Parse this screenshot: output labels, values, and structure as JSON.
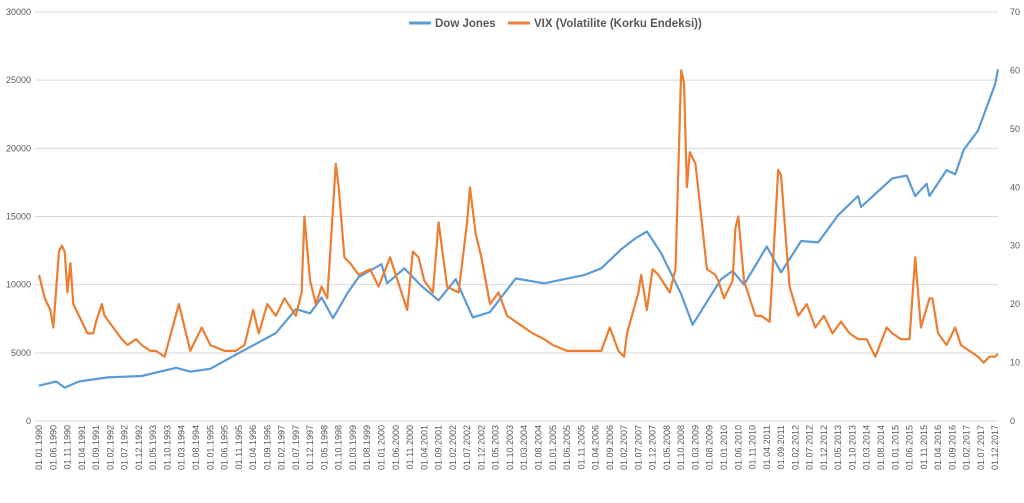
{
  "chart_data": {
    "type": "line",
    "title": "",
    "xlabel": "",
    "ylabel": "",
    "y2label": "",
    "grid": "horizontal",
    "legend_position": "top",
    "ylim": [
      0,
      30000
    ],
    "y_ticks": [
      "0",
      "5000",
      "10000",
      "15000",
      "20000",
      "25000",
      "30000"
    ],
    "y2lim": [
      0,
      70
    ],
    "y2_ticks": [
      "0",
      "10",
      "20",
      "30",
      "40",
      "50",
      "60",
      "70"
    ],
    "x_start": "1990-01",
    "x_ticks": [
      "01.01.1990",
      "01.06.1990",
      "01.11.1990",
      "01.04.1991",
      "01.09.1991",
      "01.02.1992",
      "01.07.1992",
      "01.12.1992",
      "01.05.1993",
      "01.10.1993",
      "01.03.1994",
      "01.08.1994",
      "01.01.1995",
      "01.06.1995",
      "01.11.1995",
      "01.04.1996",
      "01.09.1996",
      "01.02.1997",
      "01.07.1997",
      "01.12.1997",
      "01.05.1998",
      "01.10.1998",
      "01.03.1999",
      "01.08.1999",
      "01.01.2000",
      "01.06.2000",
      "01.11.2000",
      "01.04.2001",
      "01.09.2001",
      "01.02.2002",
      "01.07.2002",
      "01.12.2002",
      "01.05.2003",
      "01.10.2003",
      "01.03.2004",
      "01.08.2004",
      "01.01.2005",
      "01.06.2005",
      "01.11.2005",
      "01.04.2006",
      "01.09.2006",
      "01.02.2007",
      "01.07.2007",
      "01.12.2007",
      "01.05.2008",
      "01.10.2008",
      "01.03.2009",
      "01.08.2009",
      "01.01.2010",
      "01.06.2010",
      "01.11.2010",
      "01.04.2011",
      "01.09.2011",
      "01.02.2012",
      "01.07.2012",
      "01.12.2012",
      "01.05.2013",
      "01.10.2013",
      "01.03.2014",
      "01.08.2014",
      "01.01.2015",
      "01.06.2015",
      "01.11.2015",
      "01.04.2016",
      "01.09.2016",
      "01.02.2017",
      "01.07.2017",
      "01.12.2017"
    ],
    "series": [
      {
        "name": "Dow Jones",
        "axis": "left",
        "color": "#5B9BD5",
        "points": [
          [
            "1990-01",
            2590
          ],
          [
            "1990-07",
            2900
          ],
          [
            "1990-10",
            2450
          ],
          [
            "1991-03",
            2900
          ],
          [
            "1992-01",
            3200
          ],
          [
            "1993-01",
            3300
          ],
          [
            "1994-01",
            3900
          ],
          [
            "1994-06",
            3620
          ],
          [
            "1995-01",
            3830
          ],
          [
            "1995-12",
            5100
          ],
          [
            "1996-12",
            6450
          ],
          [
            "1997-07",
            8200
          ],
          [
            "1997-12",
            7900
          ],
          [
            "1998-04",
            9060
          ],
          [
            "1998-08",
            7540
          ],
          [
            "1999-01",
            9360
          ],
          [
            "1999-05",
            10560
          ],
          [
            "2000-01",
            11500
          ],
          [
            "2000-03",
            10100
          ],
          [
            "2000-09",
            11200
          ],
          [
            "2001-03",
            9900
          ],
          [
            "2001-09",
            8850
          ],
          [
            "2002-03",
            10400
          ],
          [
            "2002-09",
            7600
          ],
          [
            "2003-03",
            7990
          ],
          [
            "2003-12",
            10450
          ],
          [
            "2004-10",
            10100
          ],
          [
            "2005-12",
            10700
          ],
          [
            "2006-06",
            11200
          ],
          [
            "2007-01",
            12600
          ],
          [
            "2007-06",
            13400
          ],
          [
            "2007-10",
            13900
          ],
          [
            "2008-03",
            12300
          ],
          [
            "2008-10",
            9300
          ],
          [
            "2009-02",
            7060
          ],
          [
            "2009-12",
            10400
          ],
          [
            "2010-04",
            11000
          ],
          [
            "2010-08",
            10000
          ],
          [
            "2011-04",
            12800
          ],
          [
            "2011-09",
            10900
          ],
          [
            "2012-04",
            13200
          ],
          [
            "2012-10",
            13100
          ],
          [
            "2013-05",
            15100
          ],
          [
            "2013-12",
            16500
          ],
          [
            "2014-01",
            15700
          ],
          [
            "2014-12",
            17800
          ],
          [
            "2015-05",
            18000
          ],
          [
            "2015-08",
            16500
          ],
          [
            "2015-12",
            17400
          ],
          [
            "2016-01",
            16500
          ],
          [
            "2016-07",
            18400
          ],
          [
            "2016-10",
            18100
          ],
          [
            "2017-01",
            19900
          ],
          [
            "2017-06",
            21300
          ],
          [
            "2017-12",
            24700
          ],
          [
            "2018-01",
            25800
          ]
        ]
      },
      {
        "name": "VIX (Volatilite (Korku Endeksi))",
        "axis": "right",
        "color": "#ED7D31",
        "points": [
          [
            "1990-01",
            25
          ],
          [
            "1990-03",
            21
          ],
          [
            "1990-05",
            19
          ],
          [
            "1990-06",
            16
          ],
          [
            "1990-08",
            29
          ],
          [
            "1990-09",
            30
          ],
          [
            "1990-10",
            29
          ],
          [
            "1990-11",
            22
          ],
          [
            "1990-12",
            27
          ],
          [
            "1991-01",
            20
          ],
          [
            "1991-03",
            18
          ],
          [
            "1991-05",
            16
          ],
          [
            "1991-06",
            15
          ],
          [
            "1991-08",
            15
          ],
          [
            "1991-09",
            17
          ],
          [
            "1991-11",
            20
          ],
          [
            "1991-12",
            18
          ],
          [
            "1992-03",
            16
          ],
          [
            "1992-06",
            14
          ],
          [
            "1992-08",
            13
          ],
          [
            "1992-11",
            14
          ],
          [
            "1993-01",
            13
          ],
          [
            "1993-04",
            12
          ],
          [
            "1993-06",
            12
          ],
          [
            "1993-09",
            11
          ],
          [
            "1994-02",
            20
          ],
          [
            "1994-04",
            16
          ],
          [
            "1994-06",
            12
          ],
          [
            "1994-08",
            14
          ],
          [
            "1994-10",
            16
          ],
          [
            "1995-01",
            13
          ],
          [
            "1995-06",
            12
          ],
          [
            "1995-10",
            12
          ],
          [
            "1996-01",
            13
          ],
          [
            "1996-04",
            19
          ],
          [
            "1996-06",
            15
          ],
          [
            "1996-09",
            20
          ],
          [
            "1996-12",
            18
          ],
          [
            "1997-03",
            21
          ],
          [
            "1997-07",
            18
          ],
          [
            "1997-09",
            22
          ],
          [
            "1997-10",
            35
          ],
          [
            "1997-12",
            24
          ],
          [
            "1998-02",
            20
          ],
          [
            "1998-04",
            23
          ],
          [
            "1998-06",
            21
          ],
          [
            "1998-09",
            44
          ],
          [
            "1998-10",
            40
          ],
          [
            "1998-12",
            28
          ],
          [
            "1999-02",
            27
          ],
          [
            "1999-05",
            25
          ],
          [
            "1999-09",
            26
          ],
          [
            "1999-12",
            23
          ],
          [
            "2000-04",
            28
          ],
          [
            "2000-06",
            25
          ],
          [
            "2000-10",
            19
          ],
          [
            "2000-12",
            29
          ],
          [
            "2001-02",
            28
          ],
          [
            "2001-04",
            24
          ],
          [
            "2001-07",
            22
          ],
          [
            "2001-09",
            34
          ],
          [
            "2001-12",
            23
          ],
          [
            "2002-04",
            22
          ],
          [
            "2002-07",
            34
          ],
          [
            "2002-08",
            40
          ],
          [
            "2002-10",
            32
          ],
          [
            "2002-12",
            28
          ],
          [
            "2003-03",
            20
          ],
          [
            "2003-06",
            22
          ],
          [
            "2003-09",
            18
          ],
          [
            "2003-12",
            17
          ],
          [
            "2004-06",
            15
          ],
          [
            "2004-10",
            14
          ],
          [
            "2005-01",
            13
          ],
          [
            "2005-06",
            12
          ],
          [
            "2005-12",
            12
          ],
          [
            "2006-06",
            12
          ],
          [
            "2006-09",
            16
          ],
          [
            "2006-12",
            12
          ],
          [
            "2007-02",
            11
          ],
          [
            "2007-03",
            15
          ],
          [
            "2007-07",
            22
          ],
          [
            "2007-08",
            25
          ],
          [
            "2007-10",
            19
          ],
          [
            "2007-12",
            26
          ],
          [
            "2008-02",
            25
          ],
          [
            "2008-06",
            22
          ],
          [
            "2008-08",
            26
          ],
          [
            "2008-10",
            60
          ],
          [
            "2008-11",
            58
          ],
          [
            "2008-12",
            40
          ],
          [
            "2009-01",
            46
          ],
          [
            "2009-03",
            44
          ],
          [
            "2009-05",
            35
          ],
          [
            "2009-07",
            26
          ],
          [
            "2009-10",
            25
          ],
          [
            "2009-11",
            24
          ],
          [
            "2010-01",
            21
          ],
          [
            "2010-04",
            24
          ],
          [
            "2010-05",
            33
          ],
          [
            "2010-06",
            35
          ],
          [
            "2010-08",
            24
          ],
          [
            "2010-12",
            18
          ],
          [
            "2011-02",
            18
          ],
          [
            "2011-05",
            17
          ],
          [
            "2011-08",
            43
          ],
          [
            "2011-09",
            42
          ],
          [
            "2011-11",
            29
          ],
          [
            "2011-12",
            23
          ],
          [
            "2012-03",
            18
          ],
          [
            "2012-06",
            20
          ],
          [
            "2012-09",
            16
          ],
          [
            "2012-12",
            18
          ],
          [
            "2013-03",
            15
          ],
          [
            "2013-06",
            17
          ],
          [
            "2013-09",
            15
          ],
          [
            "2013-12",
            14
          ],
          [
            "2014-03",
            14
          ],
          [
            "2014-06",
            11
          ],
          [
            "2014-10",
            16
          ],
          [
            "2014-12",
            15
          ],
          [
            "2015-03",
            14
          ],
          [
            "2015-06",
            14
          ],
          [
            "2015-08",
            28
          ],
          [
            "2015-10",
            16
          ],
          [
            "2016-01",
            21
          ],
          [
            "2016-02",
            21
          ],
          [
            "2016-04",
            15
          ],
          [
            "2016-07",
            13
          ],
          [
            "2016-10",
            16
          ],
          [
            "2016-12",
            13
          ],
          [
            "2017-03",
            12
          ],
          [
            "2017-06",
            11
          ],
          [
            "2017-08",
            10
          ],
          [
            "2017-10",
            11
          ],
          [
            "2017-12",
            11
          ],
          [
            "2018-01",
            11.5
          ]
        ]
      }
    ]
  }
}
